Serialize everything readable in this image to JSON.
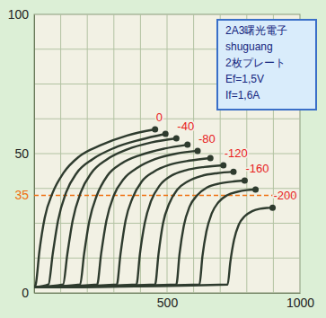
{
  "chart_data": {
    "type": "line",
    "color": "#2e3b2e",
    "xlim": [
      0,
      1000
    ],
    "ylim": [
      0,
      100
    ],
    "xticks": [
      500,
      1000
    ],
    "yticks": [
      0,
      50,
      100
    ],
    "grid": true,
    "text_box": {
      "lines": [
        "2A3曙光電子",
        "shuguang",
        "2枚プレート",
        "Ef=1,5V",
        "If=1,6A"
      ]
    },
    "reference_lines": [
      {
        "value": 35,
        "color": "#f07010",
        "line_style": "dashed"
      }
    ],
    "series": [
      {
        "name": "0",
        "x": [
          0,
          6,
          20,
          40,
          70,
          110,
          170,
          250,
          350,
          455
        ],
        "values": [
          2,
          3,
          15,
          27,
          36,
          43,
          49,
          53,
          56.5,
          58.7
        ]
      },
      {
        "x": [
          0,
          54,
          70,
          90,
          120,
          160,
          220,
          300,
          400,
          494
        ],
        "values": [
          2,
          3,
          14,
          26,
          36,
          43,
          48,
          52,
          55,
          57.1
        ]
      },
      {
        "name": "-40",
        "x": [
          0,
          109,
          125,
          145,
          175,
          215,
          275,
          350,
          440,
          535
        ],
        "values": [
          2,
          3,
          14,
          26,
          36,
          43,
          48,
          51.5,
          54,
          55.5
        ]
      },
      {
        "x": [
          0,
          173,
          188,
          208,
          236,
          275,
          330,
          400,
          490,
          577
        ],
        "values": [
          2,
          3,
          14,
          26,
          35,
          42,
          46.5,
          49.5,
          51.8,
          53.2
        ]
      },
      {
        "name": "-80",
        "x": [
          0,
          237,
          252,
          272,
          300,
          338,
          390,
          455,
          535,
          615
        ],
        "values": [
          2,
          3,
          14,
          26,
          35,
          41,
          45,
          48,
          50,
          51
        ]
      },
      {
        "x": [
          0,
          311,
          325,
          344,
          370,
          405,
          450,
          510,
          585,
          663
        ],
        "values": [
          2,
          3,
          14,
          26,
          34,
          40,
          43.5,
          46,
          47.5,
          48.4
        ]
      },
      {
        "name": "-120",
        "x": [
          0,
          385,
          398,
          416,
          440,
          472,
          515,
          570,
          640,
          712
        ],
        "values": [
          2,
          3,
          14,
          25,
          33,
          38.5,
          42,
          44,
          45.2,
          45.8
        ]
      },
      {
        "x": [
          0,
          455,
          468,
          485,
          508,
          538,
          578,
          630,
          690,
          750
        ],
        "values": [
          2,
          3,
          14,
          25,
          32,
          37,
          40,
          42,
          43,
          43.5
        ]
      },
      {
        "name": "-160",
        "x": [
          0,
          535,
          547,
          563,
          585,
          613,
          650,
          700,
          750,
          792
        ],
        "values": [
          2,
          3,
          14,
          24,
          31,
          35,
          37.8,
          39.3,
          40,
          40.3
        ]
      },
      {
        "x": [
          0,
          622,
          633,
          648,
          668,
          693,
          725,
          765,
          800,
          833
        ],
        "values": [
          2,
          3,
          13,
          22,
          28.5,
          32.5,
          35,
          36.3,
          36.9,
          37.1
        ]
      },
      {
        "name": "-200",
        "x": [
          0,
          728,
          738,
          752,
          770,
          792,
          820,
          850,
          875,
          897
        ],
        "values": [
          2,
          3,
          11,
          19,
          24.5,
          27.5,
          29.3,
          30.2,
          30.5,
          30.6
        ]
      }
    ]
  }
}
